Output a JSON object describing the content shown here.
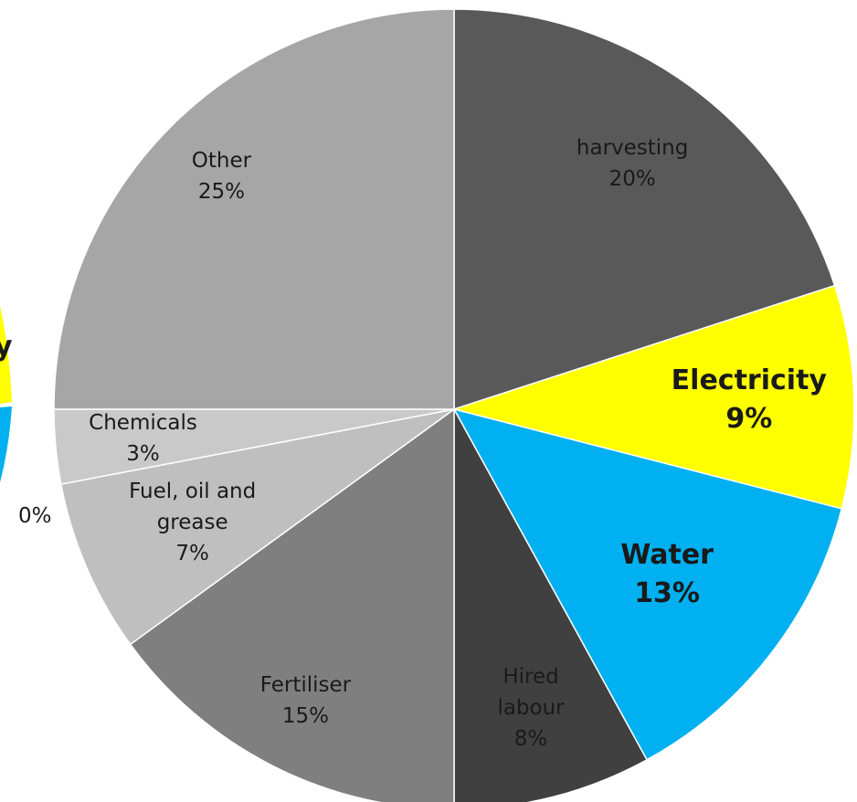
{
  "chart_data": [
    {
      "type": "pie",
      "categories": [
        "harvesting",
        "Electricity",
        "Water",
        "Hired labour",
        "Fertiliser",
        "Fuel, oil and grease",
        "Chemicals",
        "Other"
      ],
      "values": [
        20,
        9,
        13,
        8,
        15,
        7,
        3,
        25
      ],
      "value_labels": [
        "20%",
        "9%",
        "13%",
        "8%",
        "15%",
        "7%",
        "3%",
        "25%"
      ],
      "colors": [
        "#595959",
        "#ffff00",
        "#00b0f0",
        "#404040",
        "#7f7f7f",
        "#bfbfbf",
        "#c9c9c9",
        "#a6a6a6"
      ],
      "emphasis": [
        false,
        true,
        true,
        false,
        false,
        false,
        false,
        false
      ]
    },
    {
      "type": "pie-fragment",
      "annotations": [
        "y",
        "0%"
      ],
      "colors": [
        "#ffff00",
        "#00b0f0"
      ]
    }
  ]
}
